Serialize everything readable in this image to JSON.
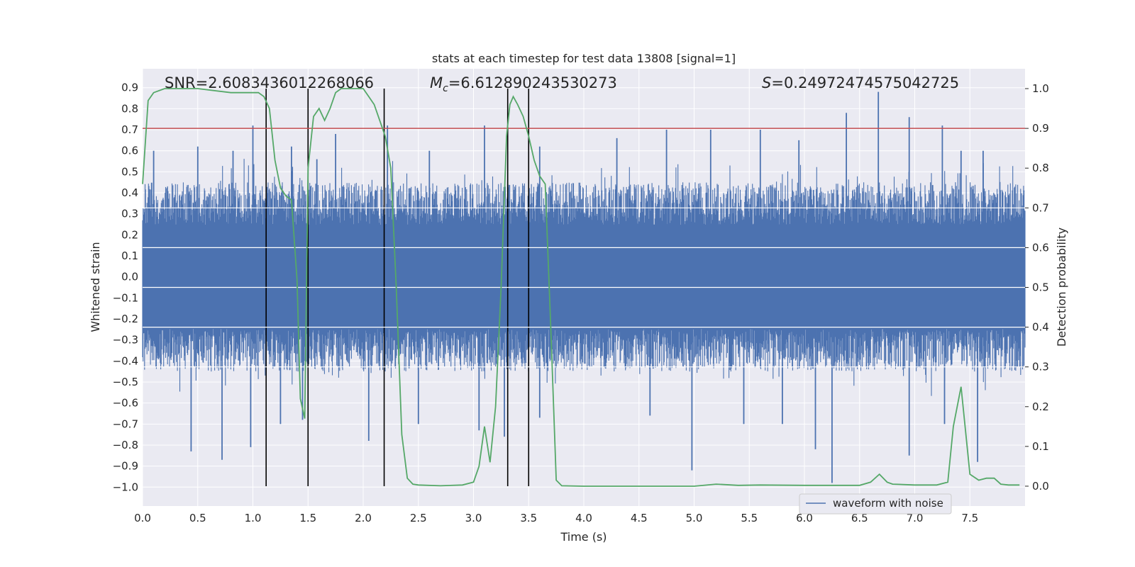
{
  "chart_data": {
    "type": "line",
    "title": "stats at each timestep for test data 13808 [signal=1]",
    "xlabel": "Time (s)",
    "ylabel_left": "Whitened strain",
    "ylabel_right": "Detection probability",
    "xlim": [
      0.0,
      8.0
    ],
    "ylim_left": [
      -1.09,
      0.99
    ],
    "ylim_right": [
      -0.05,
      1.05
    ],
    "x_ticks": [
      "0.0",
      "0.5",
      "1.0",
      "1.5",
      "2.0",
      "2.5",
      "3.0",
      "3.5",
      "4.0",
      "4.5",
      "5.0",
      "5.5",
      "6.0",
      "6.5",
      "7.0",
      "7.5"
    ],
    "y_left_ticks": [
      "0.9",
      "0.8",
      "0.7",
      "0.6",
      "0.5",
      "0.4",
      "0.3",
      "0.2",
      "0.1",
      "0.0",
      "−0.1",
      "−0.2",
      "−0.3",
      "−0.4",
      "−0.5",
      "−0.6",
      "−0.7",
      "−0.8",
      "−0.9",
      "−1.0"
    ],
    "y_right_ticks": [
      "0.0",
      "0.1",
      "0.2",
      "0.3",
      "0.4",
      "0.5",
      "0.6",
      "0.7",
      "0.8",
      "0.9",
      "1.0"
    ],
    "annotations": {
      "snr": "SNR=2.6083436012268066",
      "mc_symbol": "M",
      "mc_sub": "c",
      "mc_value": "=6.612890243530273",
      "s_symbol": "S",
      "s_value": "=0.24972474575042725"
    },
    "threshold": {
      "value": 0.9,
      "axis": "right",
      "color": "#c44e52"
    },
    "vertical_lines_x": [
      1.12,
      1.5,
      2.19,
      3.31,
      3.5
    ],
    "waveform": {
      "name": "waveform with noise",
      "color": "#4c72b0",
      "core_amplitude": 0.45,
      "spikes_up": [
        [
          0.1,
          0.6
        ],
        [
          0.5,
          0.62
        ],
        [
          0.82,
          0.6
        ],
        [
          1.0,
          0.72
        ],
        [
          1.35,
          0.62
        ],
        [
          1.58,
          0.56
        ],
        [
          1.75,
          0.68
        ],
        [
          2.22,
          0.72
        ],
        [
          2.6,
          0.6
        ],
        [
          3.1,
          0.72
        ],
        [
          3.6,
          0.62
        ],
        [
          4.3,
          0.66
        ],
        [
          4.75,
          0.7
        ],
        [
          5.15,
          0.7
        ],
        [
          5.6,
          0.7
        ],
        [
          5.95,
          0.65
        ],
        [
          6.38,
          0.78
        ],
        [
          6.67,
          0.88
        ],
        [
          6.95,
          0.76
        ],
        [
          7.25,
          0.72
        ],
        [
          7.42,
          0.6
        ],
        [
          7.62,
          0.6
        ]
      ],
      "spikes_down": [
        [
          0.44,
          -0.83
        ],
        [
          0.72,
          -0.87
        ],
        [
          0.98,
          -0.81
        ],
        [
          1.25,
          -0.7
        ],
        [
          1.45,
          -0.68
        ],
        [
          2.05,
          -0.78
        ],
        [
          2.5,
          -0.7
        ],
        [
          3.05,
          -0.73
        ],
        [
          3.28,
          -0.76
        ],
        [
          3.6,
          -0.67
        ],
        [
          4.6,
          -0.66
        ],
        [
          4.98,
          -0.92
        ],
        [
          5.45,
          -0.7
        ],
        [
          5.8,
          -0.7
        ],
        [
          6.1,
          -0.82
        ],
        [
          6.25,
          -0.98
        ],
        [
          6.95,
          -0.85
        ],
        [
          7.27,
          -0.7
        ],
        [
          7.57,
          -0.88
        ]
      ]
    },
    "probability": {
      "color": "#55a868",
      "x": [
        0.0,
        0.05,
        0.1,
        0.2,
        0.3,
        0.5,
        0.8,
        1.0,
        1.05,
        1.1,
        1.15,
        1.2,
        1.25,
        1.3,
        1.35,
        1.4,
        1.43,
        1.47,
        1.5,
        1.55,
        1.6,
        1.65,
        1.7,
        1.75,
        1.8,
        1.9,
        2.0,
        2.05,
        2.1,
        2.15,
        2.2,
        2.25,
        2.3,
        2.35,
        2.4,
        2.45,
        2.5,
        2.7,
        2.9,
        3.0,
        3.05,
        3.1,
        3.15,
        3.2,
        3.25,
        3.3,
        3.33,
        3.36,
        3.4,
        3.45,
        3.5,
        3.55,
        3.6,
        3.65,
        3.7,
        3.75,
        3.8,
        4.0,
        4.5,
        5.0,
        5.2,
        5.4,
        5.6,
        6.0,
        6.2,
        6.5,
        6.6,
        6.68,
        6.75,
        6.8,
        7.0,
        7.2,
        7.3,
        7.35,
        7.42,
        7.5,
        7.58,
        7.65,
        7.72,
        7.78,
        7.85,
        7.95
      ],
      "values": [
        0.76,
        0.97,
        0.99,
        1.0,
        1.0,
        1.0,
        0.99,
        0.99,
        0.99,
        0.98,
        0.95,
        0.82,
        0.75,
        0.73,
        0.72,
        0.52,
        0.22,
        0.17,
        0.8,
        0.93,
        0.95,
        0.92,
        0.95,
        0.99,
        1.0,
        1.0,
        1.0,
        0.98,
        0.96,
        0.92,
        0.88,
        0.8,
        0.5,
        0.13,
        0.02,
        0.005,
        0.003,
        0.001,
        0.003,
        0.01,
        0.05,
        0.15,
        0.06,
        0.2,
        0.5,
        0.88,
        0.96,
        0.98,
        0.96,
        0.93,
        0.88,
        0.82,
        0.78,
        0.76,
        0.4,
        0.015,
        0.001,
        0.0,
        0.0,
        0.0,
        0.005,
        0.002,
        0.003,
        0.002,
        0.002,
        0.002,
        0.01,
        0.03,
        0.01,
        0.005,
        0.003,
        0.003,
        0.01,
        0.15,
        0.25,
        0.03,
        0.015,
        0.02,
        0.02,
        0.005,
        0.003,
        0.003
      ]
    },
    "legend": {
      "position": "lower-right",
      "label": "waveform with noise"
    }
  }
}
